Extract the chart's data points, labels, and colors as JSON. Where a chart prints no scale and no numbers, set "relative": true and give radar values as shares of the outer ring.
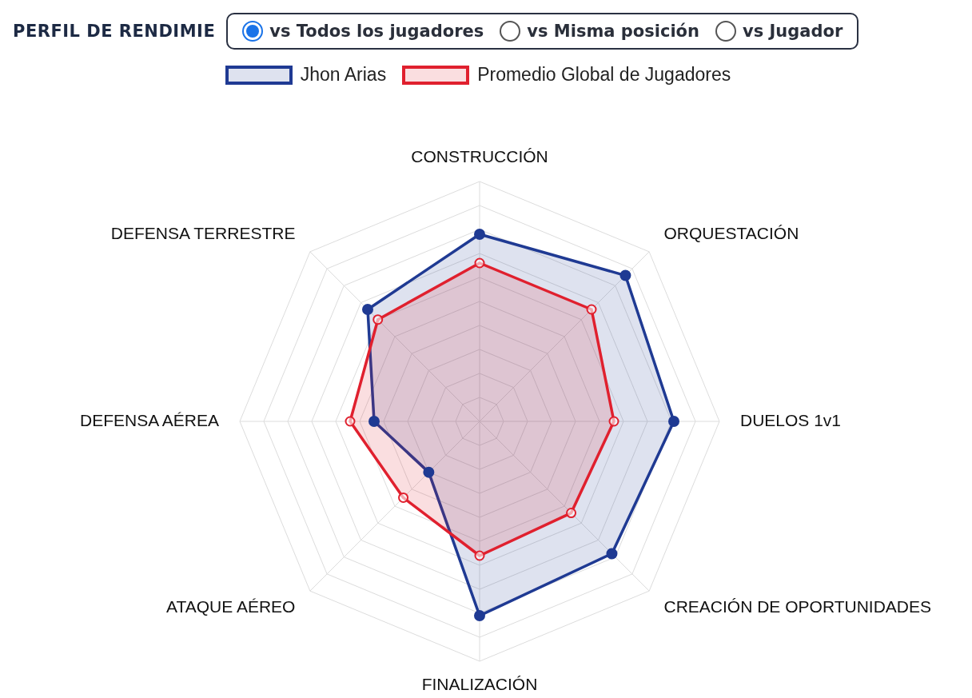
{
  "chart_data": {
    "type": "radar",
    "title": "PERFIL DE RENDIMIE",
    "annotations": [
      "vs Todos los jugadores",
      "vs Misma posición",
      "vs Jugador"
    ],
    "categories": [
      "CONSTRUCCIÓN",
      "ORQUESTACIÓN",
      "DUELOS 1v1",
      "CREACIÓN DE OPORTUNIDADES",
      "FINALIZACIÓN",
      "ATAQUE AÉREO",
      "DEFENSA AÉREA",
      "DEFENSA TERRESTRE"
    ],
    "series": [
      {
        "name": "Jhon Arias",
        "color": "#1f3a93",
        "values": [
          0.78,
          0.86,
          0.81,
          0.78,
          0.81,
          0.3,
          0.44,
          0.66
        ]
      },
      {
        "name": "Promedio Global de Jugadores",
        "color": "#e0202e",
        "values": [
          0.66,
          0.66,
          0.56,
          0.54,
          0.56,
          0.45,
          0.54,
          0.6
        ]
      }
    ],
    "relative": true,
    "grid": true,
    "legend": "top",
    "marker": "circle"
  }
}
